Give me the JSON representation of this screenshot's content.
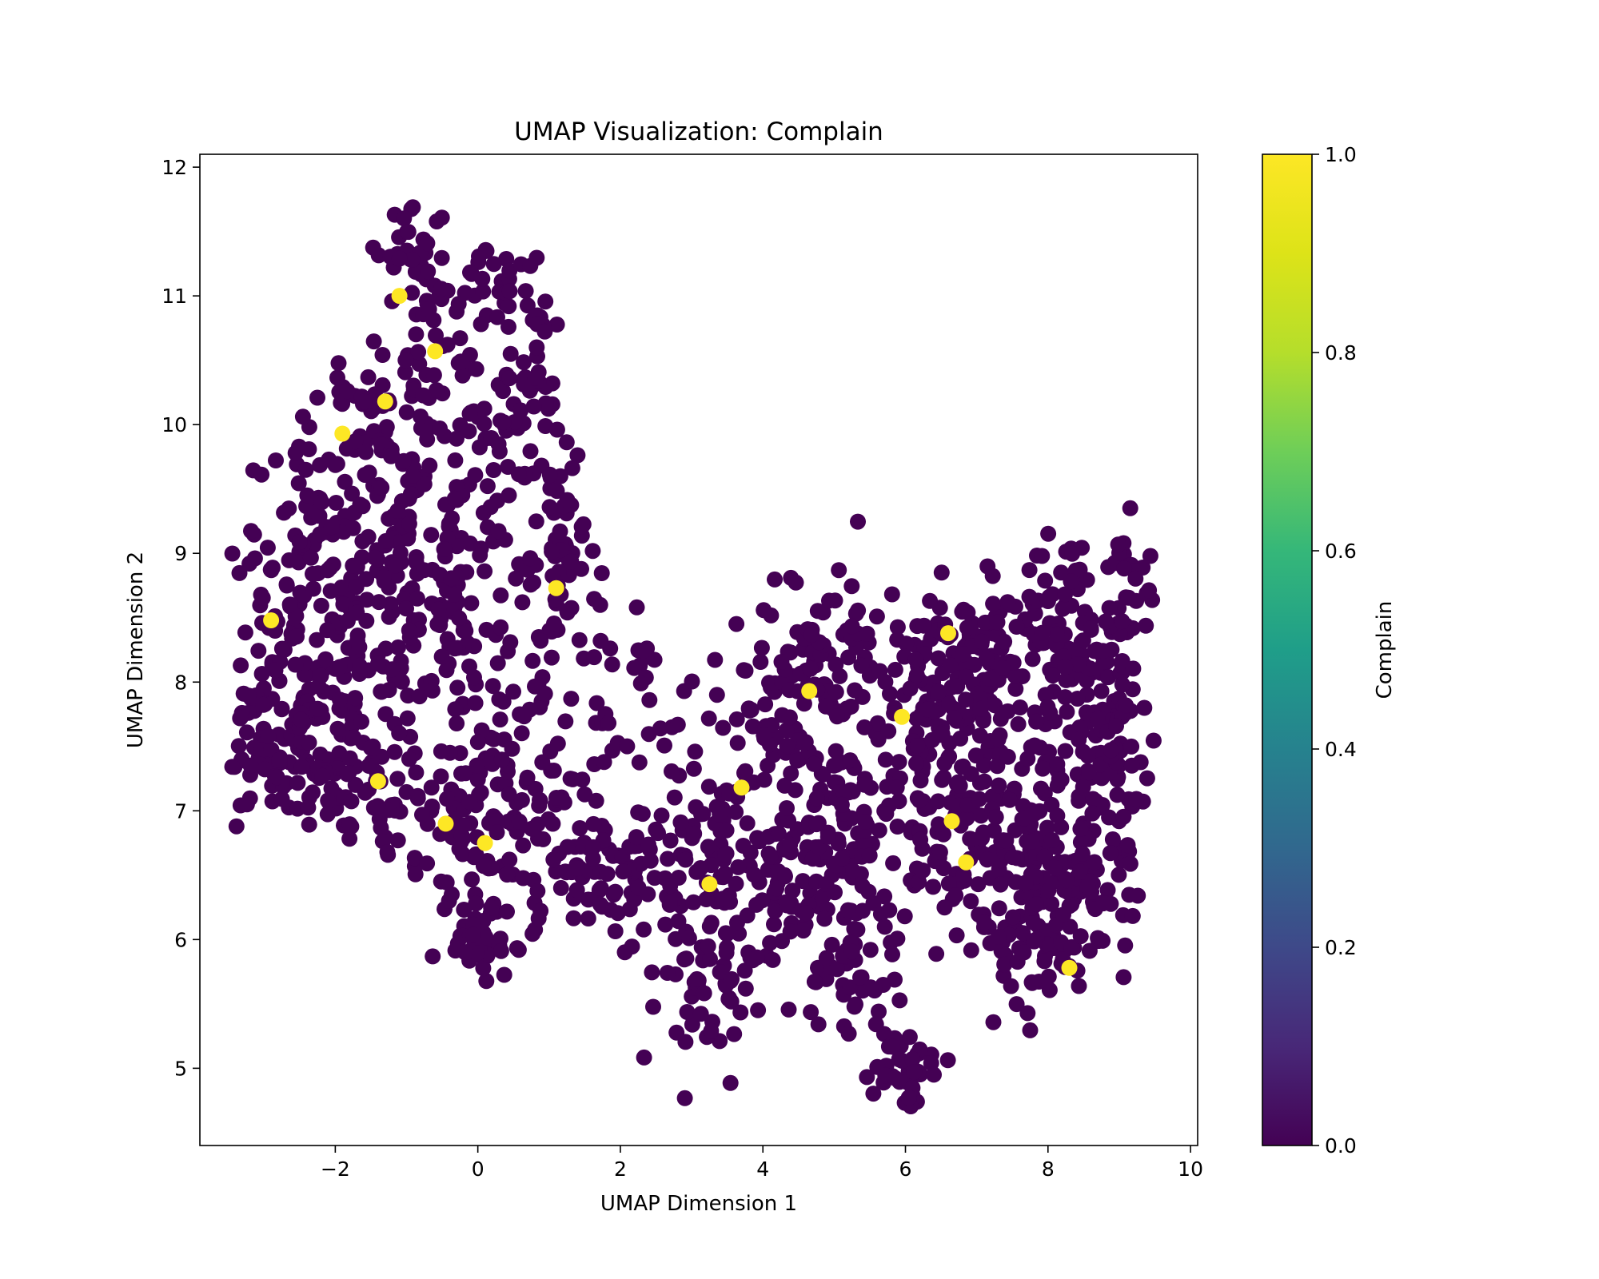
{
  "chart_data": {
    "type": "scatter",
    "title": "UMAP Visualization: Complain",
    "xlabel": "UMAP Dimension 1",
    "ylabel": "UMAP Dimension 2",
    "xlim": [
      -3.9,
      10.1
    ],
    "ylim": [
      4.4,
      12.1
    ],
    "x_ticks": [
      -2,
      0,
      2,
      4,
      6,
      8,
      10
    ],
    "y_ticks": [
      5,
      6,
      7,
      8,
      9,
      10,
      11,
      12
    ],
    "x_tick_labels": [
      "−2",
      "0",
      "2",
      "4",
      "6",
      "8",
      "10"
    ],
    "y_tick_labels": [
      "5",
      "6",
      "7",
      "8",
      "9",
      "10",
      "11",
      "12"
    ],
    "grid": false,
    "colormap": "viridis",
    "colorbar": {
      "label": "Complain",
      "range": [
        0.0,
        1.0
      ],
      "ticks": [
        0.0,
        0.2,
        0.4,
        0.6,
        0.8,
        1.0
      ],
      "tick_labels": [
        "0.0",
        "0.2",
        "0.4",
        "0.6",
        "0.8",
        "1.0"
      ]
    },
    "colors": {
      "class_0": "#440154",
      "class_1": "#fde725"
    },
    "series": [
      {
        "value": 1,
        "points": [
          [
            -1.1,
            11.0
          ],
          [
            -0.6,
            10.57
          ],
          [
            -1.3,
            10.18
          ],
          [
            -1.9,
            9.93
          ],
          [
            -2.9,
            8.48
          ],
          [
            1.1,
            8.73
          ],
          [
            -1.4,
            7.23
          ],
          [
            -0.45,
            6.9
          ],
          [
            0.1,
            6.75
          ],
          [
            3.7,
            7.18
          ],
          [
            3.25,
            6.43
          ],
          [
            4.65,
            7.93
          ],
          [
            5.95,
            7.73
          ],
          [
            6.6,
            8.38
          ],
          [
            6.65,
            6.92
          ],
          [
            6.85,
            6.6
          ],
          [
            8.3,
            5.78
          ]
        ]
      }
    ]
  }
}
